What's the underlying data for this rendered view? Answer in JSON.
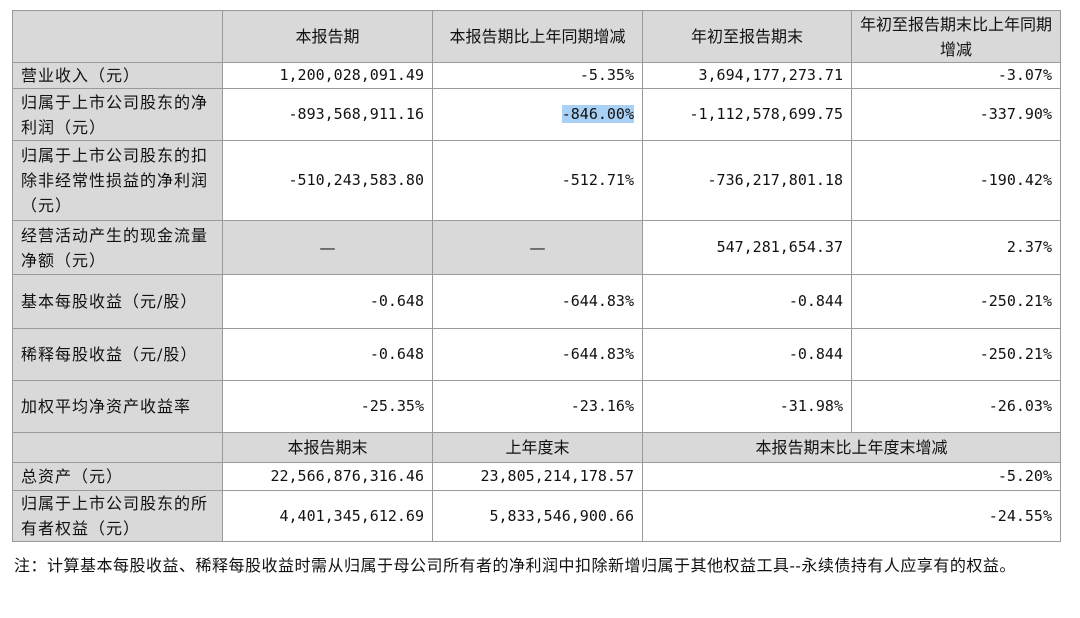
{
  "header": [
    "",
    "本报告期",
    "本报告期比上年同期增减",
    "年初至报告期末",
    "年初至报告期末比上年同期增减"
  ],
  "rows": [
    {
      "label": "营业收入（元）",
      "values": [
        "1,200,028,091.49",
        "-5.35%",
        "3,694,177,273.71",
        "-3.07%"
      ]
    },
    {
      "label": "归属于上市公司股东的净利润（元）",
      "values": [
        "-893,568,911.16",
        "-846.00%",
        "-1,112,578,699.75",
        "-337.90%"
      ]
    },
    {
      "label": "归属于上市公司股东的扣除非经常性损益的净利润（元）",
      "values": [
        "-510,243,583.80",
        "-512.71%",
        "-736,217,801.18",
        "-190.42%"
      ]
    },
    {
      "label": "经营活动产生的现金流量净额（元）",
      "values": [
        "—",
        "—",
        "547,281,654.37",
        "2.37%"
      ]
    },
    {
      "label": "基本每股收益（元/股）",
      "values": [
        "-0.648",
        "-644.83%",
        "-0.844",
        "-250.21%"
      ]
    },
    {
      "label": "稀释每股收益（元/股）",
      "values": [
        "-0.648",
        "-644.83%",
        "-0.844",
        "-250.21%"
      ]
    },
    {
      "label": "加权平均净资产收益率",
      "values": [
        "-25.35%",
        "-23.16%",
        "-31.98%",
        "-26.03%"
      ]
    }
  ],
  "header2": [
    "",
    "本报告期末",
    "上年度末",
    "本报告期末比上年度末增减"
  ],
  "rows2": [
    {
      "label": "总资产（元）",
      "values": [
        "22,566,876,316.46",
        "23,805,214,178.57",
        "-5.20%"
      ]
    },
    {
      "label": "归属于上市公司股东的所有者权益（元）",
      "values": [
        "4,401,345,612.69",
        "5,833,546,900.66",
        "-24.55%"
      ]
    }
  ],
  "highlight_color": "#a9d1f5",
  "note": "注：计算基本每股收益、稀释每股收益时需从归属于母公司所有者的净利润中扣除新增归属于其他权益工具--永续债持有人应享有的权益。"
}
